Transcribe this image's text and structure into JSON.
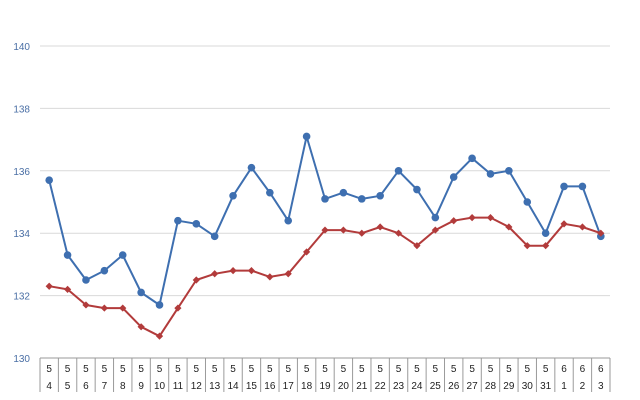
{
  "chart_data": {
    "type": "line",
    "title": "",
    "xlabel": "",
    "ylabel": "",
    "ylim": [
      130,
      140
    ],
    "yticks": [
      "130",
      "132",
      "134",
      "136",
      "138",
      "140"
    ],
    "grid": true,
    "categories": [
      {
        "month": "5",
        "day": "4"
      },
      {
        "month": "5",
        "day": "5"
      },
      {
        "month": "5",
        "day": "6"
      },
      {
        "month": "5",
        "day": "7"
      },
      {
        "month": "5",
        "day": "8"
      },
      {
        "month": "5",
        "day": "9"
      },
      {
        "month": "5",
        "day": "10"
      },
      {
        "month": "5",
        "day": "11"
      },
      {
        "month": "5",
        "day": "12"
      },
      {
        "month": "5",
        "day": "13"
      },
      {
        "month": "5",
        "day": "14"
      },
      {
        "month": "5",
        "day": "15"
      },
      {
        "month": "5",
        "day": "16"
      },
      {
        "month": "5",
        "day": "17"
      },
      {
        "month": "5",
        "day": "18"
      },
      {
        "month": "5",
        "day": "19"
      },
      {
        "month": "5",
        "day": "20"
      },
      {
        "month": "5",
        "day": "21"
      },
      {
        "month": "5",
        "day": "22"
      },
      {
        "month": "5",
        "day": "23"
      },
      {
        "month": "5",
        "day": "24"
      },
      {
        "month": "5",
        "day": "25"
      },
      {
        "month": "5",
        "day": "26"
      },
      {
        "month": "5",
        "day": "27"
      },
      {
        "month": "5",
        "day": "28"
      },
      {
        "month": "5",
        "day": "29"
      },
      {
        "month": "5",
        "day": "30"
      },
      {
        "month": "5",
        "day": "31"
      },
      {
        "month": "6",
        "day": "1"
      },
      {
        "month": "6",
        "day": "2"
      },
      {
        "month": "6",
        "day": "3"
      }
    ],
    "series": [
      {
        "color": "#3e6fb0",
        "marker": "circle",
        "values": [
          135.7,
          133.3,
          132.5,
          132.8,
          133.3,
          132.1,
          131.7,
          134.4,
          134.3,
          133.9,
          135.2,
          136.1,
          135.3,
          134.4,
          137.1,
          135.1,
          135.3,
          135.1,
          135.2,
          136.0,
          135.4,
          134.5,
          135.8,
          136.4,
          135.9,
          136.0,
          135.0,
          134.0,
          135.5,
          135.5,
          133.9
        ]
      },
      {
        "color": "#b23b3b",
        "marker": "diamond",
        "values": [
          132.3,
          132.2,
          131.7,
          131.6,
          131.6,
          131.0,
          130.7,
          131.6,
          132.5,
          132.7,
          132.8,
          132.8,
          132.6,
          132.7,
          133.4,
          134.1,
          134.1,
          134.0,
          134.2,
          134.0,
          133.6,
          134.1,
          134.4,
          134.5,
          134.5,
          134.2,
          133.6,
          133.6,
          134.3,
          134.2,
          134.0
        ]
      }
    ]
  }
}
